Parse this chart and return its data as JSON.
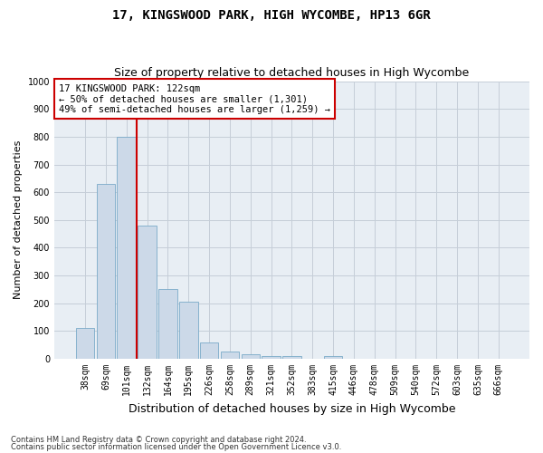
{
  "title": "17, KINGSWOOD PARK, HIGH WYCOMBE, HP13 6GR",
  "subtitle": "Size of property relative to detached houses in High Wycombe",
  "xlabel": "Distribution of detached houses by size in High Wycombe",
  "ylabel": "Number of detached properties",
  "footnote1": "Contains HM Land Registry data © Crown copyright and database right 2024.",
  "footnote2": "Contains public sector information licensed under the Open Government Licence v3.0.",
  "categories": [
    "38sqm",
    "69sqm",
    "101sqm",
    "132sqm",
    "164sqm",
    "195sqm",
    "226sqm",
    "258sqm",
    "289sqm",
    "321sqm",
    "352sqm",
    "383sqm",
    "415sqm",
    "446sqm",
    "478sqm",
    "509sqm",
    "540sqm",
    "572sqm",
    "603sqm",
    "635sqm",
    "666sqm"
  ],
  "values": [
    110,
    630,
    800,
    480,
    250,
    205,
    60,
    25,
    17,
    10,
    10,
    0,
    10,
    0,
    0,
    0,
    0,
    0,
    0,
    0,
    0
  ],
  "bar_color": "#ccd9e8",
  "bar_edge_color": "#7aaac8",
  "vline_color": "#cc0000",
  "vline_pos": 2.5,
  "annotation_text": "17 KINGSWOOD PARK: 122sqm\n← 50% of detached houses are smaller (1,301)\n49% of semi-detached houses are larger (1,259) →",
  "annotation_box_color": "#ffffff",
  "annotation_box_edge": "#cc0000",
  "ylim": [
    0,
    1000
  ],
  "yticks": [
    0,
    100,
    200,
    300,
    400,
    500,
    600,
    700,
    800,
    900,
    1000
  ],
  "plot_bg_color": "#e8eef4",
  "bg_color": "#ffffff",
  "grid_color": "#c5ced8",
  "title_fontsize": 10,
  "subtitle_fontsize": 9,
  "xlabel_fontsize": 9,
  "ylabel_fontsize": 8,
  "tick_fontsize": 7,
  "annotation_fontsize": 7.5,
  "footnote_fontsize": 6
}
